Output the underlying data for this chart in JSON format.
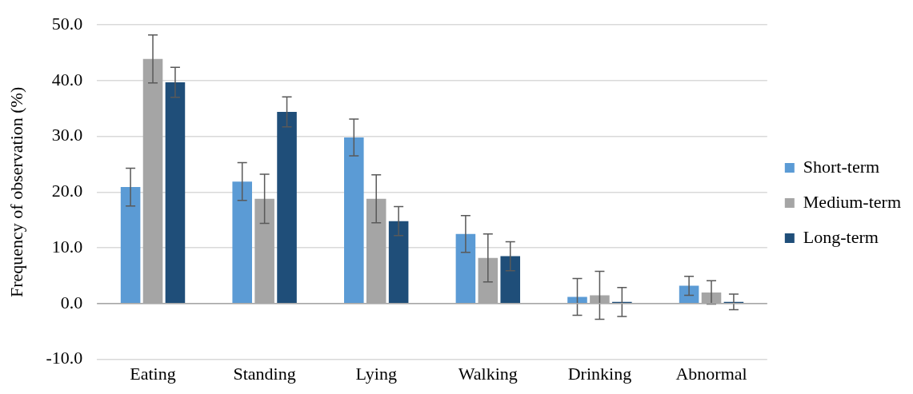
{
  "chart_data": {
    "type": "bar",
    "ylabel": "Frequency of observation (%)",
    "categories": [
      "Eating",
      "Standing",
      "Lying",
      "Walking",
      "Drinking",
      "Abnormal"
    ],
    "series": [
      {
        "name": "Short-term",
        "color": "#5b9bd5",
        "values": [
          20.9,
          21.9,
          29.8,
          12.5,
          1.2,
          3.2
        ],
        "errors": [
          3.4,
          3.4,
          3.3,
          3.3,
          3.3,
          1.7
        ]
      },
      {
        "name": "Medium-term",
        "color": "#a5a5a5",
        "values": [
          43.9,
          18.8,
          18.8,
          8.2,
          1.5,
          2.0
        ],
        "errors": [
          4.3,
          4.4,
          4.3,
          4.3,
          4.3,
          2.1
        ]
      },
      {
        "name": "Long-term",
        "color": "#1f4e79",
        "values": [
          39.7,
          34.4,
          14.8,
          8.5,
          0.3,
          0.3
        ],
        "errors": [
          2.7,
          2.7,
          2.6,
          2.6,
          2.6,
          1.4
        ]
      }
    ],
    "ylim": [
      -10,
      50
    ],
    "yticks": [
      {
        "value": -10,
        "label": "-10.0"
      },
      {
        "value": 0,
        "label": "0.0"
      },
      {
        "value": 10,
        "label": "10.0"
      },
      {
        "value": 20,
        "label": "20.0"
      },
      {
        "value": 30,
        "label": "30.0"
      },
      {
        "value": 40,
        "label": "40.0"
      },
      {
        "value": 50,
        "label": "50.0"
      }
    ],
    "grid": "y",
    "legend": "right"
  }
}
